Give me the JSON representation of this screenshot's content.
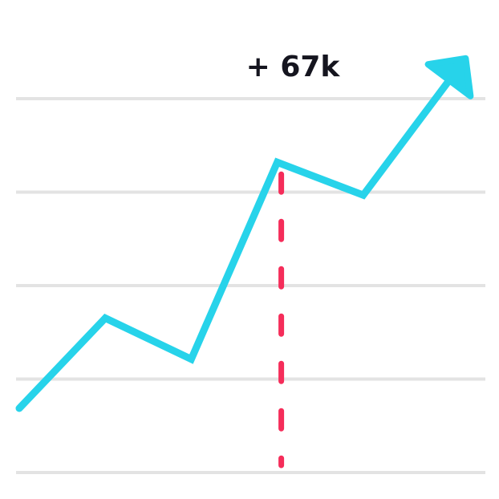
{
  "chart_data": {
    "type": "line",
    "title": "",
    "xlabel": "",
    "ylabel": "",
    "grid": true,
    "gridlines": 5,
    "colors": {
      "line": "#27d3ea",
      "marker": "#f52d5a",
      "grid": "#e3e3e3",
      "text": "#15151f"
    },
    "series": [
      {
        "x": [
          0,
          1,
          2,
          3,
          4,
          5
        ],
        "values": [
          1.0,
          2.1,
          1.6,
          4.0,
          3.6,
          5.0
        ]
      }
    ],
    "arrow_head": "arrow-up-right-icon",
    "annotation": {
      "x": 3,
      "text": "+ 67k"
    },
    "ylim": [
      0,
      5
    ]
  }
}
